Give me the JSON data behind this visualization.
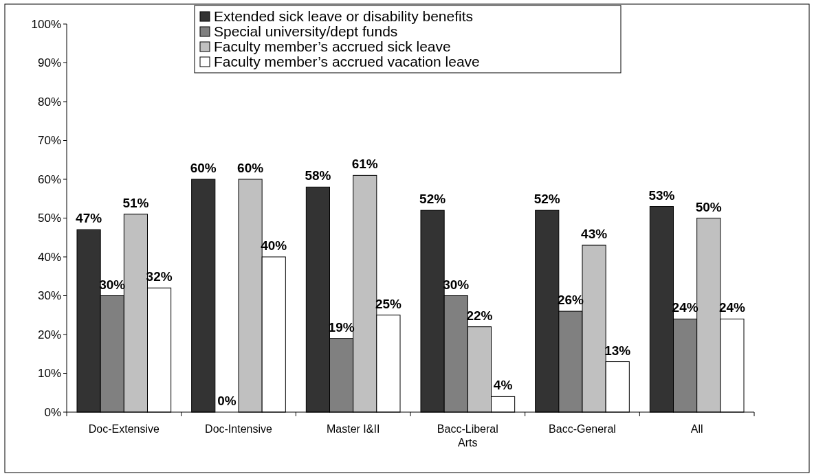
{
  "chart_data": {
    "type": "bar",
    "categories": [
      "Doc-Extensive",
      "Doc-Intensive",
      "Master I&II",
      "Bacc-Liberal Arts",
      "Bacc-General",
      "All"
    ],
    "series": [
      {
        "name": "Extended sick leave or disability benefits",
        "color": "#333333",
        "values": [
          47,
          60,
          58,
          52,
          52,
          53
        ],
        "value_labels": [
          "47%",
          "60%",
          "58%",
          "52%",
          "52%",
          "53%"
        ]
      },
      {
        "name": "Special university/dept funds",
        "color": "#808080",
        "values": [
          30,
          0,
          19,
          30,
          26,
          24
        ],
        "value_labels": [
          "30%",
          "0%",
          "19%",
          "30%",
          "26%",
          "24%"
        ]
      },
      {
        "name": "Faculty member’s accrued sick leave",
        "color": "#c0c0c0",
        "values": [
          51,
          60,
          61,
          22,
          43,
          50
        ],
        "value_labels": [
          "51%",
          "60%",
          "61%",
          "22%",
          "43%",
          "50%"
        ]
      },
      {
        "name": "Faculty member’s accrued vacation leave",
        "color": "#ffffff",
        "values": [
          32,
          40,
          25,
          4,
          13,
          24
        ],
        "value_labels": [
          "32%",
          "40%",
          "25%",
          "4%",
          "13%",
          "24%"
        ]
      }
    ],
    "ylim": [
      0,
      100
    ],
    "yticks": [
      {
        "value": 0,
        "label": "0%"
      },
      {
        "value": 10,
        "label": "10%"
      },
      {
        "value": 20,
        "label": "20%"
      },
      {
        "value": 30,
        "label": "30%"
      },
      {
        "value": 40,
        "label": "40%"
      },
      {
        "value": 50,
        "label": "50%"
      },
      {
        "value": 60,
        "label": "60%"
      },
      {
        "value": 70,
        "label": "70%"
      },
      {
        "value": 80,
        "label": "80%"
      },
      {
        "value": 90,
        "label": "90%"
      },
      {
        "value": 100,
        "label": "100%"
      }
    ],
    "grid": false,
    "legend": "top"
  }
}
